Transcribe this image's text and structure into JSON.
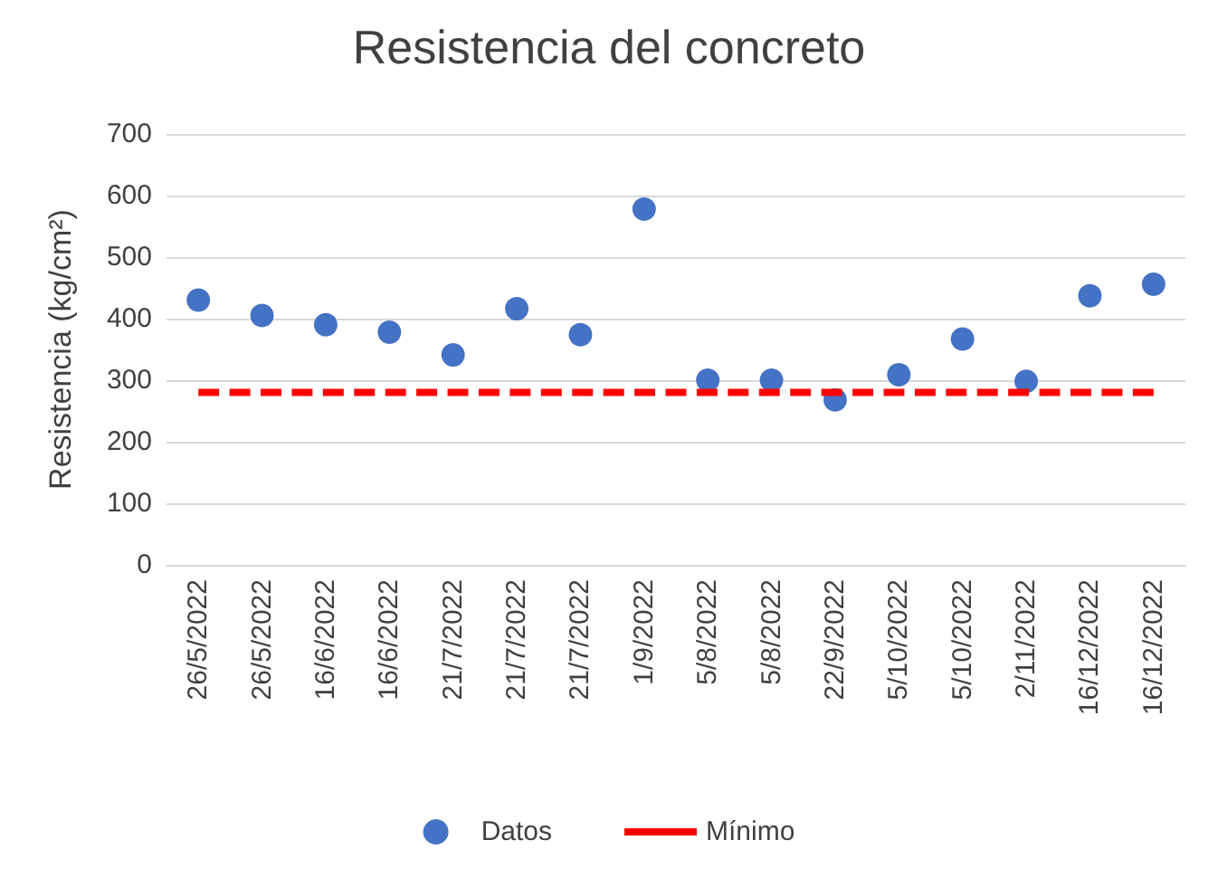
{
  "chart_data": {
    "type": "scatter",
    "title": "Resistencia del concreto",
    "ylabel": "Resistencia (kg/cm²)",
    "categories": [
      "26/5/2022",
      "26/5/2022",
      "16/6/2022",
      "16/6/2022",
      "21/7/2022",
      "21/7/2022",
      "21/7/2022",
      "1/9/2022",
      "5/8/2022",
      "5/8/2022",
      "22/9/2022",
      "5/10/2022",
      "5/10/2022",
      "2/11/2022",
      "16/12/2022",
      "16/12/2022"
    ],
    "series": [
      {
        "name": "Datos",
        "color": "#4472c4",
        "marker": "circle",
        "values": [
          430,
          405,
          390,
          378,
          341,
          416,
          374,
          578,
          300,
          300,
          268,
          309,
          367,
          298,
          437,
          456
        ]
      },
      {
        "name": "Mínimo",
        "type": "line",
        "color": "#ff0000",
        "marker": "none",
        "line_style": "dashed",
        "values": [
          280,
          280,
          280,
          280,
          280,
          280,
          280,
          280,
          280,
          280,
          280,
          280,
          280,
          280,
          280,
          280
        ]
      }
    ],
    "ylim": [
      0,
      700
    ],
    "yticks": [
      0,
      100,
      200,
      300,
      400,
      500,
      600,
      700
    ],
    "grid": "y",
    "legend": "bottom"
  }
}
